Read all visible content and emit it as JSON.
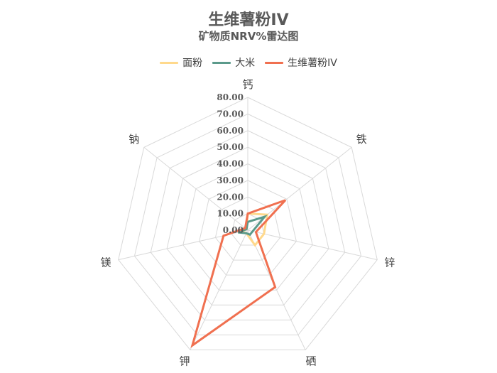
{
  "chart_data": {
    "type": "radar",
    "title": "生维薯粉IV",
    "subtitle": "矿物质NRV%雷达图",
    "axes": [
      "钙",
      "铁",
      "锌",
      "硒",
      "钾",
      "镁",
      "钠"
    ],
    "ticks": [
      "0.00",
      "10.00",
      "20.00",
      "30.00",
      "40.00",
      "50.00",
      "60.00",
      "70.00",
      "80.00"
    ],
    "range": [
      0,
      80
    ],
    "grid": true,
    "legend_position": "top",
    "series": [
      {
        "name": "面粉",
        "color": "#FFD98C",
        "values": [
          10,
          15,
          10,
          10,
          2,
          4,
          1
        ]
      },
      {
        "name": "大米",
        "color": "#5B9A8B",
        "values": [
          5,
          13,
          3,
          3,
          2,
          6,
          1
        ]
      },
      {
        "name": "生维薯粉IV",
        "color": "#F07050",
        "values": [
          10,
          29,
          5,
          38,
          77,
          15,
          2
        ]
      }
    ]
  }
}
